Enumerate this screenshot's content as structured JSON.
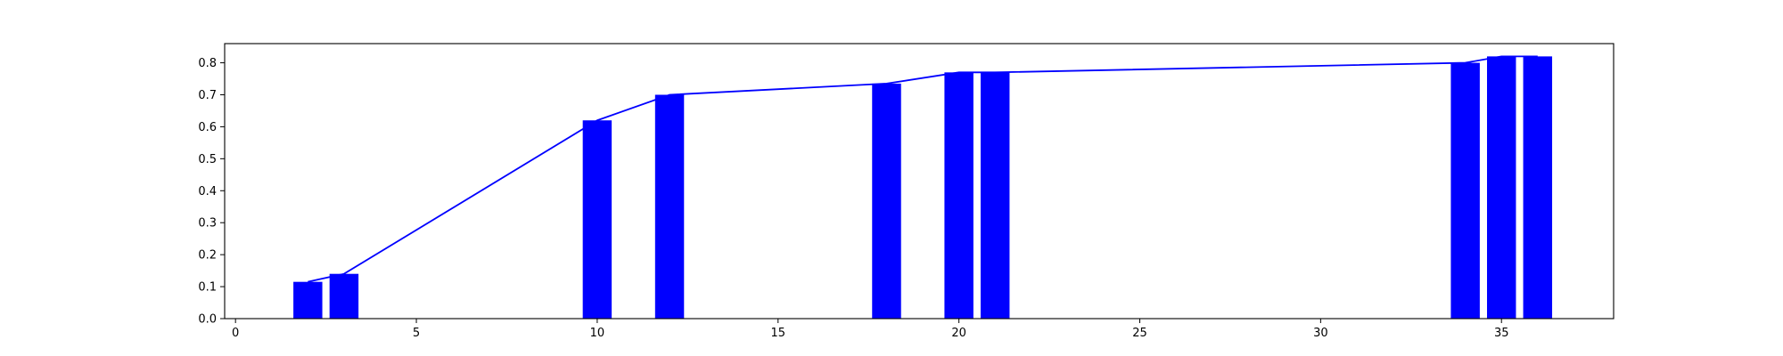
{
  "chart_data": {
    "type": "bar",
    "title": "",
    "xlabel": "",
    "ylabel": "",
    "xlim": [
      -0.3,
      38.1
    ],
    "ylim": [
      0,
      0.86
    ],
    "grid": false,
    "legend": null,
    "xticks": [
      0,
      5,
      10,
      15,
      20,
      25,
      30,
      35
    ],
    "yticks": [
      0.0,
      0.1,
      0.2,
      0.3,
      0.4,
      0.5,
      0.6,
      0.7,
      0.8
    ],
    "ytick_labels": [
      "0.0",
      "0.1",
      "0.2",
      "0.3",
      "0.4",
      "0.5",
      "0.6",
      "0.7",
      "0.8"
    ],
    "bar_width": 0.8,
    "series": [
      {
        "kind": "bar",
        "color": "#0000ff",
        "x": [
          2,
          3,
          10,
          12,
          18,
          20,
          21,
          34,
          35,
          36
        ],
        "values": [
          0.115,
          0.14,
          0.62,
          0.7,
          0.735,
          0.77,
          0.77,
          0.8,
          0.82,
          0.82
        ]
      },
      {
        "kind": "line",
        "color": "#0000ff",
        "x": [
          2,
          3,
          10,
          12,
          18,
          20,
          21,
          34,
          35,
          36
        ],
        "values": [
          0.115,
          0.14,
          0.62,
          0.7,
          0.735,
          0.77,
          0.77,
          0.8,
          0.82,
          0.82
        ]
      }
    ]
  }
}
